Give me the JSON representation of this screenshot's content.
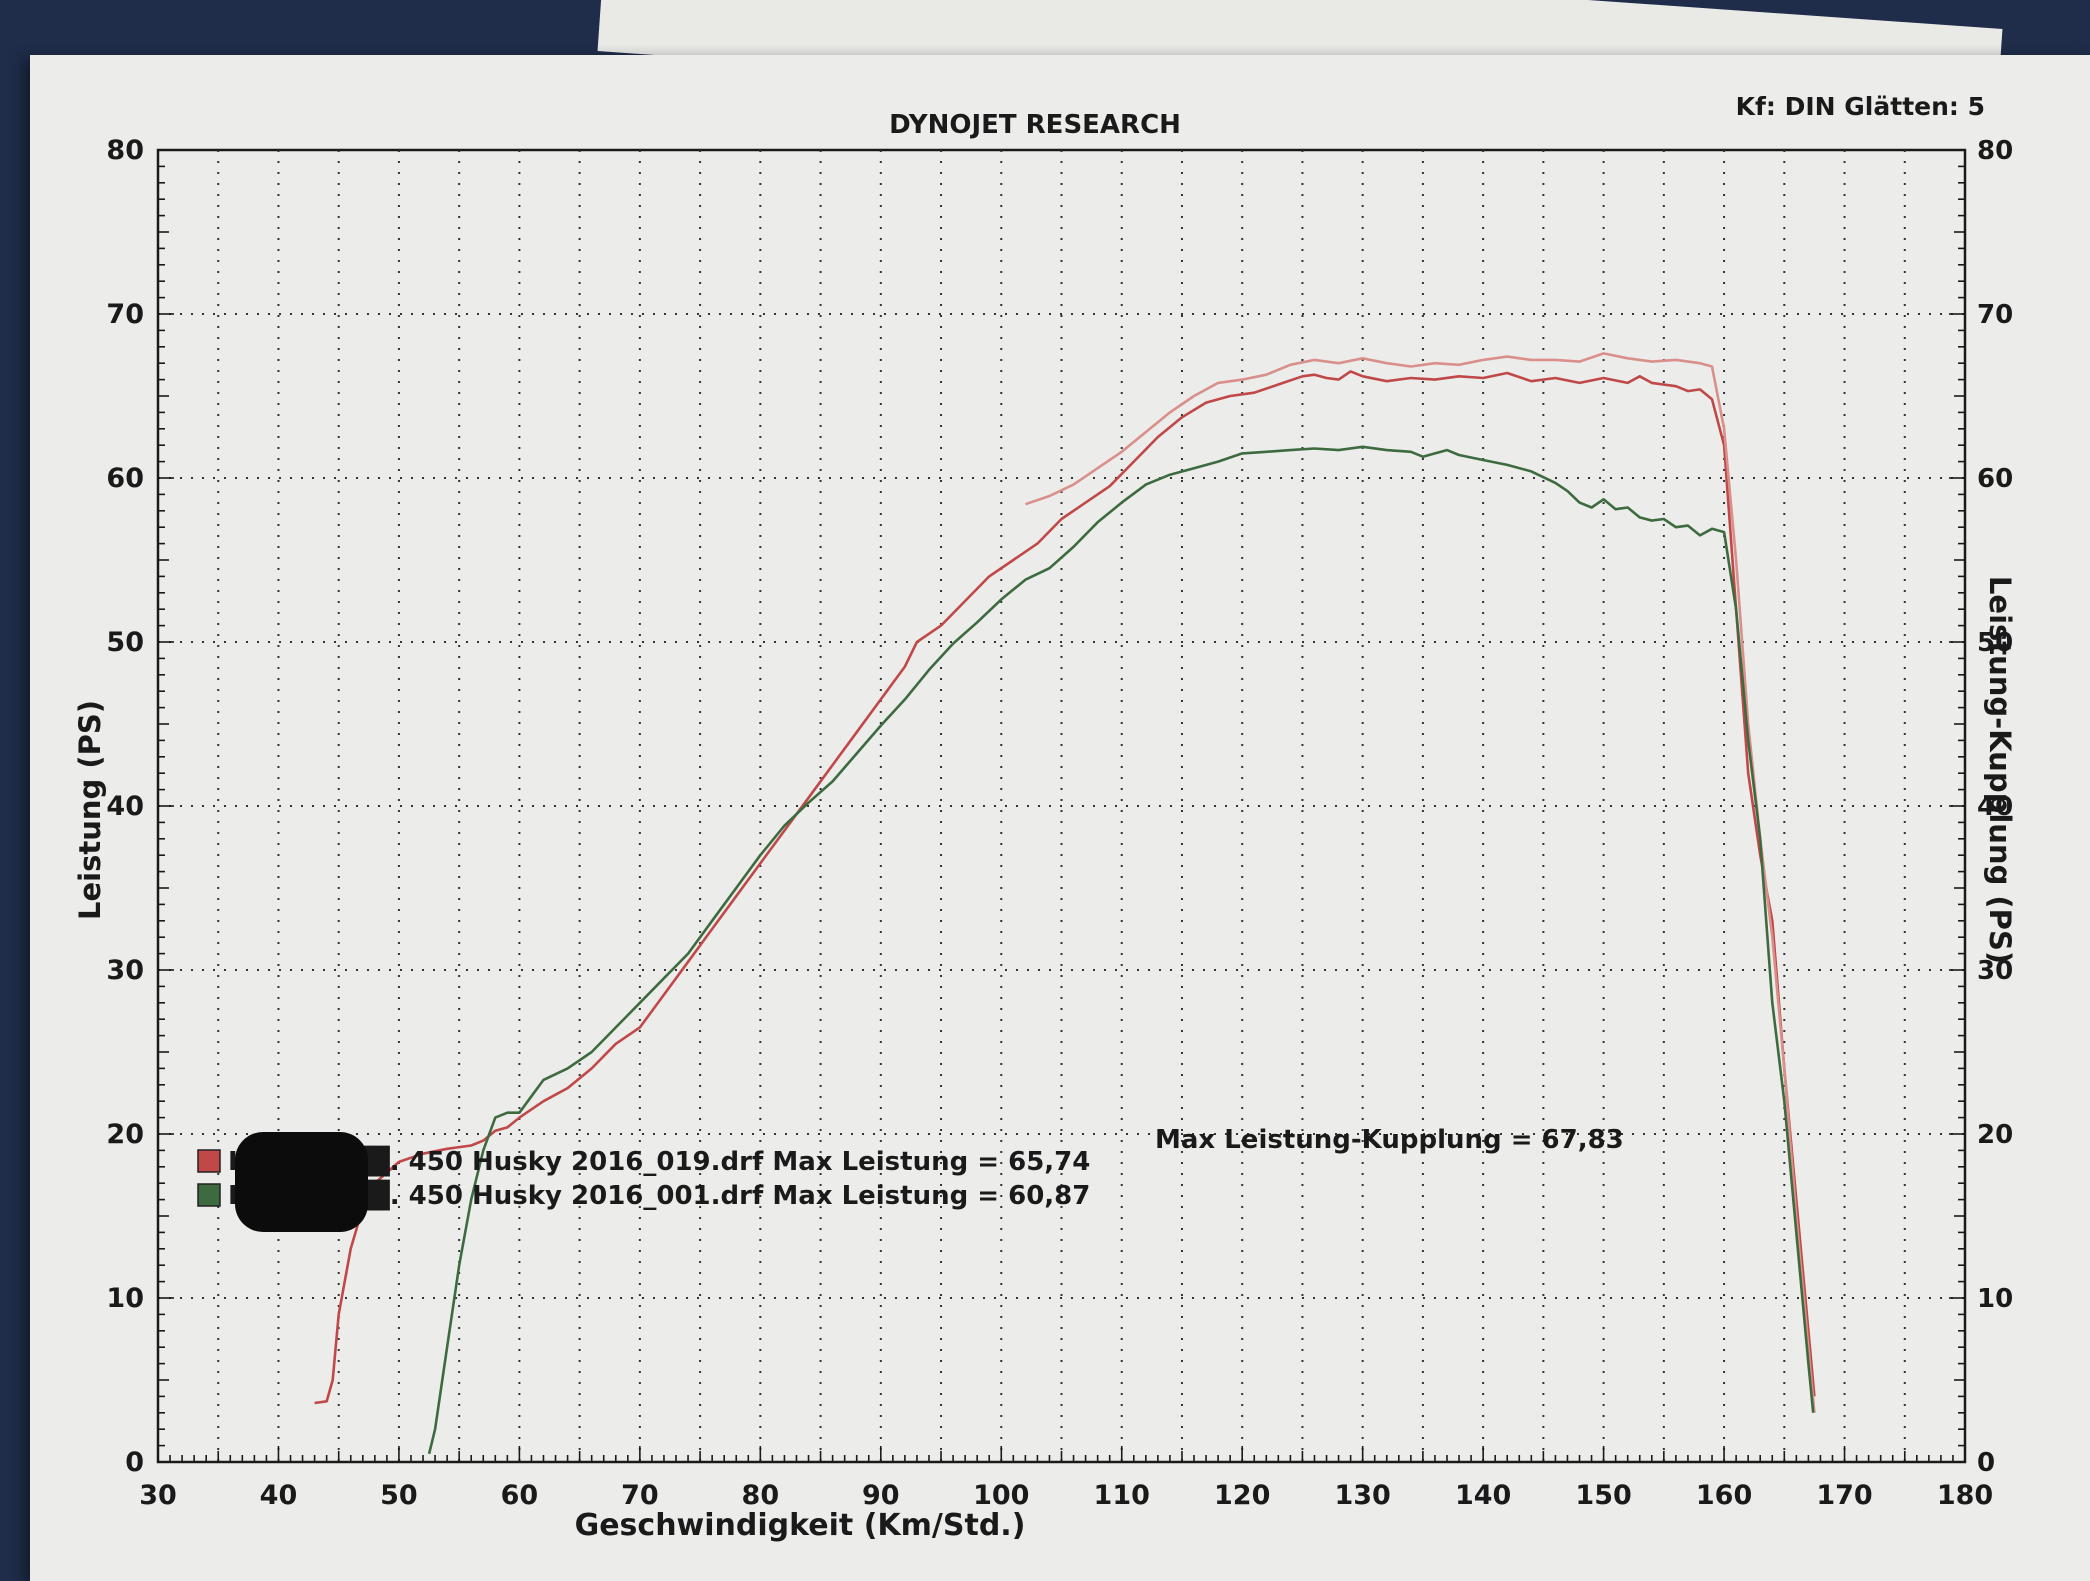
{
  "header": {
    "title": "DYNOJET RESEARCH",
    "settings": "Kf: DIN  Glätten: 5"
  },
  "colors": {
    "run1": "#c04848",
    "run1_light": "#d98f8a",
    "run2": "#3d6b3f",
    "grid": "#333333",
    "paper": "#ecedea"
  },
  "legend": {
    "entries": [
      {
        "text": "H███████. 450 Husky 2016_019.drf Max Leistung = 65,74",
        "color": "#c04848"
      },
      {
        "text": "H███████. 450 Husky 2016_001.drf Max Leistung = 60,87",
        "color": "#3d6b3f"
      }
    ],
    "extra": "Max Leistung-Kupplung = 67,83"
  },
  "chart_data": {
    "type": "line",
    "title": "DYNOJET RESEARCH",
    "xlabel": "Geschwindigkeit (Km/Std.)",
    "ylabel": "Leistung (PS)",
    "y2label": "Leistung-Kupplung (PS)",
    "xlim": [
      30,
      180
    ],
    "ylim": [
      0,
      80
    ],
    "y2lim": [
      0,
      80
    ],
    "x_ticks": [
      30,
      40,
      50,
      60,
      70,
      80,
      90,
      100,
      110,
      120,
      130,
      140,
      150,
      160,
      170,
      180
    ],
    "y_ticks": [
      0,
      10,
      20,
      30,
      40,
      50,
      60,
      70,
      80
    ],
    "y2_ticks": [
      0,
      10,
      20,
      30,
      40,
      50,
      60,
      70,
      80
    ],
    "grid": true,
    "series": [
      {
        "axis": "left",
        "color": "#c04848",
        "points": [
          [
            43,
            3.6
          ],
          [
            44,
            3.7
          ],
          [
            44.5,
            5
          ],
          [
            45,
            9
          ],
          [
            46,
            13
          ],
          [
            47,
            15.5
          ],
          [
            48,
            17
          ],
          [
            50,
            18.3
          ],
          [
            52,
            18.8
          ],
          [
            54,
            19.1
          ],
          [
            55,
            19.2
          ],
          [
            56,
            19.3
          ],
          [
            57,
            19.6
          ],
          [
            58,
            20.2
          ],
          [
            59,
            20.4
          ],
          [
            60,
            21
          ],
          [
            62,
            22
          ],
          [
            64,
            22.8
          ],
          [
            66,
            24
          ],
          [
            68,
            25.5
          ],
          [
            70,
            26.5
          ],
          [
            72,
            28.5
          ],
          [
            74,
            30.5
          ],
          [
            76,
            32.5
          ],
          [
            78,
            34.5
          ],
          [
            80,
            36.5
          ],
          [
            82,
            38.5
          ],
          [
            84,
            40.5
          ],
          [
            86,
            42.5
          ],
          [
            88,
            44.5
          ],
          [
            90,
            46.5
          ],
          [
            92,
            48.5
          ],
          [
            93,
            50
          ],
          [
            95,
            51
          ],
          [
            97,
            52.5
          ],
          [
            99,
            54
          ],
          [
            101,
            55
          ],
          [
            103,
            56
          ],
          [
            105,
            57.5
          ],
          [
            107,
            58.5
          ],
          [
            109,
            59.5
          ],
          [
            111,
            61
          ],
          [
            113,
            62.5
          ],
          [
            115,
            63.7
          ],
          [
            117,
            64.6
          ],
          [
            119,
            65
          ],
          [
            121,
            65.2
          ],
          [
            123,
            65.7
          ],
          [
            125,
            66.2
          ],
          [
            126,
            66.3
          ],
          [
            127,
            66.1
          ],
          [
            128,
            66
          ],
          [
            129,
            66.5
          ],
          [
            130,
            66.2
          ],
          [
            132,
            65.9
          ],
          [
            134,
            66.1
          ],
          [
            136,
            66
          ],
          [
            138,
            66.2
          ],
          [
            140,
            66.1
          ],
          [
            142,
            66.4
          ],
          [
            144,
            65.9
          ],
          [
            146,
            66.1
          ],
          [
            148,
            65.8
          ],
          [
            150,
            66.1
          ],
          [
            152,
            65.8
          ],
          [
            153,
            66.2
          ],
          [
            154,
            65.8
          ],
          [
            156,
            65.6
          ],
          [
            157,
            65.3
          ],
          [
            158,
            65.4
          ],
          [
            159,
            64.8
          ],
          [
            160,
            62
          ],
          [
            161,
            52
          ],
          [
            162,
            42
          ],
          [
            163,
            37
          ],
          [
            163.5,
            35
          ],
          [
            164,
            33
          ],
          [
            165,
            24
          ],
          [
            166,
            16
          ],
          [
            167,
            8
          ],
          [
            167.5,
            4
          ]
        ]
      },
      {
        "axis": "right",
        "color": "#d98f8a",
        "points": [
          [
            102,
            58.4
          ],
          [
            104,
            58.9
          ],
          [
            106,
            59.6
          ],
          [
            108,
            60.6
          ],
          [
            110,
            61.6
          ],
          [
            112,
            62.8
          ],
          [
            114,
            64
          ],
          [
            116,
            65
          ],
          [
            118,
            65.8
          ],
          [
            120,
            66
          ],
          [
            122,
            66.3
          ],
          [
            124,
            66.9
          ],
          [
            126,
            67.2
          ],
          [
            128,
            67
          ],
          [
            130,
            67.3
          ],
          [
            132,
            67
          ],
          [
            134,
            66.8
          ],
          [
            136,
            67
          ],
          [
            138,
            66.9
          ],
          [
            140,
            67.2
          ],
          [
            142,
            67.4
          ],
          [
            144,
            67.2
          ],
          [
            146,
            67.2
          ],
          [
            148,
            67.1
          ],
          [
            150,
            67.6
          ],
          [
            152,
            67.3
          ],
          [
            154,
            67.1
          ],
          [
            156,
            67.2
          ],
          [
            158,
            67
          ],
          [
            159,
            66.8
          ],
          [
            160,
            63
          ],
          [
            161,
            55
          ],
          [
            162,
            45
          ],
          [
            163,
            38
          ],
          [
            164,
            32
          ],
          [
            165,
            24
          ],
          [
            166,
            15
          ],
          [
            167,
            7
          ],
          [
            167.5,
            3
          ]
        ]
      },
      {
        "axis": "left",
        "color": "#3d6b3f",
        "points": [
          [
            52.5,
            0.5
          ],
          [
            53,
            2
          ],
          [
            54,
            7
          ],
          [
            55,
            12
          ],
          [
            56,
            16
          ],
          [
            57,
            19
          ],
          [
            58,
            21
          ],
          [
            59,
            21.3
          ],
          [
            60,
            21.3
          ],
          [
            61,
            22.3
          ],
          [
            62,
            23.3
          ],
          [
            64,
            24
          ],
          [
            66,
            25
          ],
          [
            68,
            26.5
          ],
          [
            70,
            28
          ],
          [
            72,
            29.5
          ],
          [
            74,
            31
          ],
          [
            76,
            33
          ],
          [
            78,
            35
          ],
          [
            80,
            37
          ],
          [
            82,
            38.8
          ],
          [
            84,
            40.2
          ],
          [
            86,
            41.5
          ],
          [
            88,
            43.2
          ],
          [
            90,
            44.9
          ],
          [
            92,
            46.5
          ],
          [
            94,
            48.3
          ],
          [
            96,
            49.9
          ],
          [
            98,
            51.2
          ],
          [
            100,
            52.6
          ],
          [
            102,
            53.8
          ],
          [
            104,
            54.5
          ],
          [
            106,
            55.8
          ],
          [
            108,
            57.3
          ],
          [
            110,
            58.5
          ],
          [
            112,
            59.6
          ],
          [
            114,
            60.2
          ],
          [
            116,
            60.6
          ],
          [
            118,
            61
          ],
          [
            120,
            61.5
          ],
          [
            122,
            61.6
          ],
          [
            124,
            61.7
          ],
          [
            126,
            61.8
          ],
          [
            128,
            61.7
          ],
          [
            130,
            61.9
          ],
          [
            132,
            61.7
          ],
          [
            134,
            61.6
          ],
          [
            135,
            61.3
          ],
          [
            136,
            61.5
          ],
          [
            137,
            61.7
          ],
          [
            138,
            61.4
          ],
          [
            140,
            61.1
          ],
          [
            142,
            60.8
          ],
          [
            144,
            60.4
          ],
          [
            146,
            59.7
          ],
          [
            147,
            59.2
          ],
          [
            148,
            58.5
          ],
          [
            149,
            58.2
          ],
          [
            150,
            58.7
          ],
          [
            151,
            58.1
          ],
          [
            152,
            58.2
          ],
          [
            153,
            57.6
          ],
          [
            154,
            57.4
          ],
          [
            155,
            57.5
          ],
          [
            156,
            57
          ],
          [
            157,
            57.1
          ],
          [
            158,
            56.5
          ],
          [
            159,
            56.9
          ],
          [
            160,
            56.7
          ],
          [
            161,
            52
          ],
          [
            162,
            44
          ],
          [
            163,
            38
          ],
          [
            163.5,
            33
          ],
          [
            164,
            28
          ],
          [
            165,
            22
          ],
          [
            166,
            14
          ],
          [
            167,
            6
          ],
          [
            167.4,
            3
          ]
        ]
      }
    ]
  }
}
